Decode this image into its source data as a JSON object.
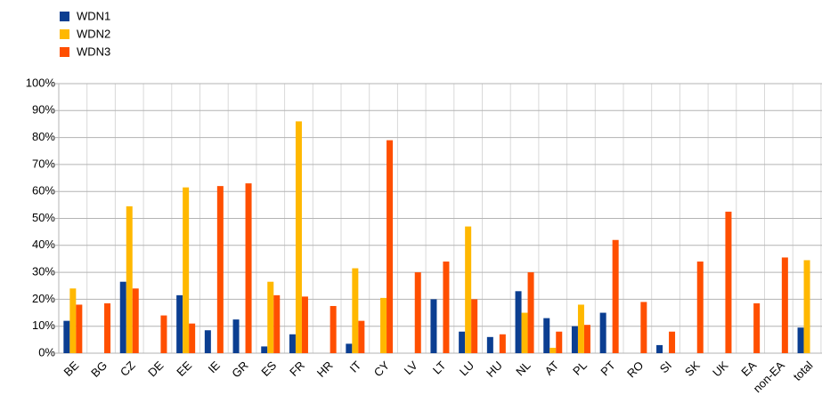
{
  "chart_data": {
    "type": "bar",
    "categories": [
      "BE",
      "BG",
      "CZ",
      "DE",
      "EE",
      "IE",
      "GR",
      "ES",
      "FR",
      "HR",
      "IT",
      "CY",
      "LV",
      "LT",
      "LU",
      "HU",
      "NL",
      "AT",
      "PL",
      "PT",
      "RO",
      "SI",
      "SK",
      "UK",
      "EA",
      "non-EA",
      "total"
    ],
    "series": [
      {
        "name": "WDN1",
        "color": "#0b3e91",
        "values": [
          12,
          0,
          26.5,
          0,
          21.5,
          8.5,
          12.5,
          2.5,
          7,
          0,
          3.5,
          0,
          0,
          20,
          8,
          6,
          23,
          13,
          10,
          15,
          0,
          3,
          0,
          0,
          0,
          0,
          9.5
        ]
      },
      {
        "name": "WDN2",
        "color": "#ffb800",
        "values": [
          24,
          0,
          54.5,
          0,
          61.5,
          0,
          0,
          26.5,
          86,
          0,
          31.5,
          20.5,
          0,
          0,
          47,
          0,
          15,
          2,
          18,
          0,
          0,
          0,
          0,
          0,
          0,
          0,
          34.5
        ]
      },
      {
        "name": "WDN3",
        "color": "#ff4f00",
        "values": [
          18,
          18.5,
          24,
          14,
          11,
          62,
          63,
          21.5,
          21,
          17.5,
          12,
          79,
          30,
          34,
          20,
          7,
          30,
          8,
          10.5,
          42,
          19,
          8,
          34,
          52.5,
          18.5,
          35.5,
          null
        ]
      }
    ],
    "ylim": [
      0,
      100
    ],
    "yticks": [
      {
        "value": 0,
        "label": "0%"
      },
      {
        "value": 10,
        "label": "10%"
      },
      {
        "value": 20,
        "label": "20%"
      },
      {
        "value": 30,
        "label": "30%"
      },
      {
        "value": 40,
        "label": "40%"
      },
      {
        "value": 50,
        "label": "50%"
      },
      {
        "value": 60,
        "label": "60%"
      },
      {
        "value": 70,
        "label": "70%"
      },
      {
        "value": 80,
        "label": "80%"
      },
      {
        "value": 90,
        "label": "90%"
      },
      {
        "value": 100,
        "label": "100%"
      }
    ],
    "grid": true
  }
}
